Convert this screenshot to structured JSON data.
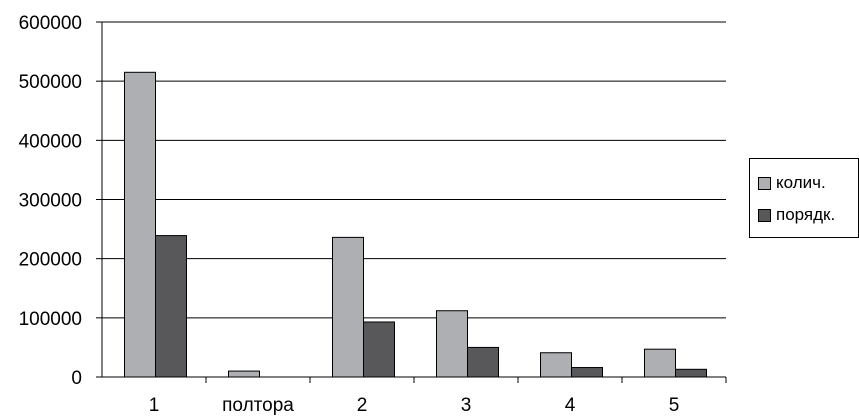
{
  "chart_data": {
    "type": "bar",
    "categories": [
      "1",
      "полтора",
      "2",
      "3",
      "4",
      "5"
    ],
    "series": [
      {
        "name": "колич.",
        "values": [
          515000,
          10000,
          236000,
          112000,
          41000,
          47000
        ],
        "color": "#aeafb2"
      },
      {
        "name": "порядк.",
        "values": [
          239000,
          0,
          93000,
          50000,
          16000,
          13000
        ],
        "color": "#58585a"
      }
    ],
    "title": "",
    "xlabel": "",
    "ylabel": "",
    "ylim": [
      0,
      600000
    ],
    "yticks": [
      "0",
      "100000",
      "200000",
      "300000",
      "400000",
      "500000",
      "600000"
    ],
    "grid": true,
    "legend_position": "right"
  }
}
